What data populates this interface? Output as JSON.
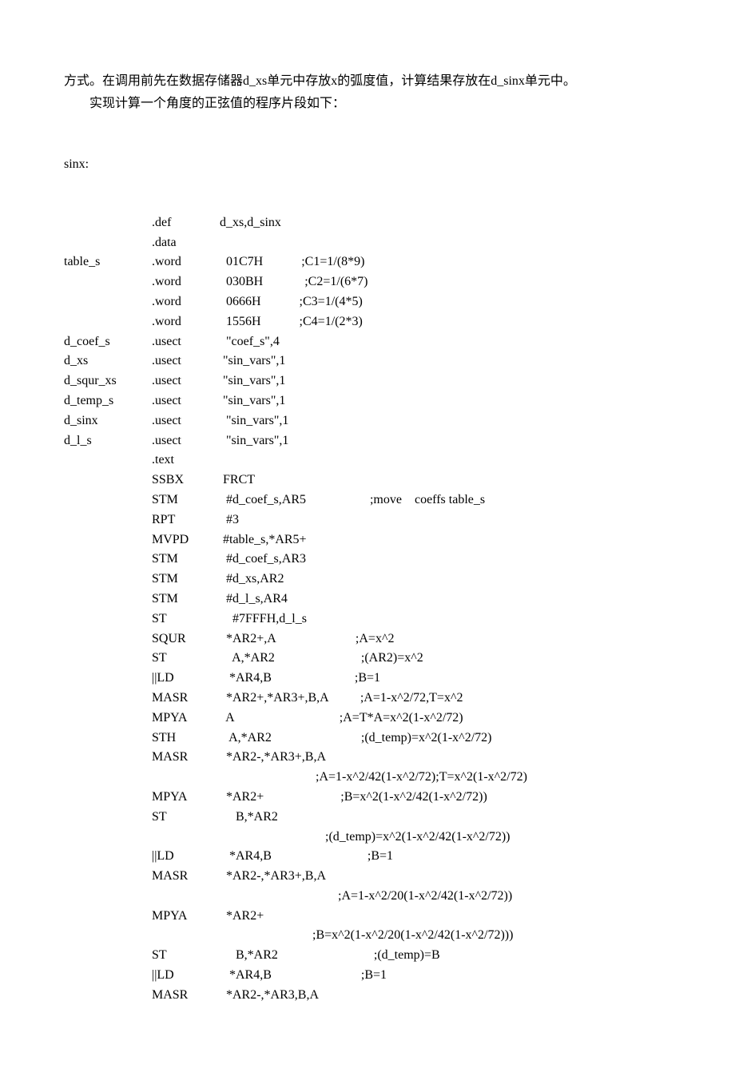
{
  "intro": {
    "p1": "方式。在调用前先在数据存储器d_xs单元中存放x的弧度值，计算结果存放在d_sinx单元中。",
    "p2": "实现计算一个角度的正弦值的程序片段如下："
  },
  "label_sinx": "sinx:",
  "lines": [
    {
      "label": "",
      "dir": ".def",
      "op": "d_xs,d_sinx"
    },
    {
      "label": "",
      "dir": ".data",
      "op": ""
    },
    {
      "label": "table_s",
      "dir": ".word",
      "op": "  01C7H            ;C1=1/(8*9)"
    },
    {
      "label": "",
      "dir": ".word",
      "op": "  030BH             ;C2=1/(6*7)"
    },
    {
      "label": "",
      "dir": ".word",
      "op": "  0666H            ;C3=1/(4*5)"
    },
    {
      "label": "",
      "dir": ".word",
      "op": "  1556H            ;C4=1/(2*3)"
    },
    {
      "label": "d_coef_s",
      "dir": ".usect",
      "op": "  \"coef_s\",4"
    },
    {
      "label": "d_xs",
      "dir": ".usect",
      "op": " \"sin_vars\",1"
    },
    {
      "label": "d_squr_xs",
      "dir": ".usect",
      "op": " \"sin_vars\",1"
    },
    {
      "label": "d_temp_s",
      "dir": ".usect",
      "op": " \"sin_vars\",1"
    },
    {
      "label": "d_sinx",
      "dir": ".usect",
      "op": "  \"sin_vars\",1"
    },
    {
      "label": "d_l_s",
      "dir": ".usect",
      "op": "  \"sin_vars\",1"
    },
    {
      "label": "",
      "dir": ".text",
      "op": ""
    },
    {
      "label": "",
      "dir": "SSBX",
      "op": " FRCT"
    },
    {
      "label": "",
      "dir": "STM",
      "op": "  #d_coef_s,AR5                    ;move    coeffs table_s"
    },
    {
      "label": "",
      "dir": "RPT",
      "op": "  #3"
    },
    {
      "label": "",
      "dir": "MVPD",
      "op": " #table_s,*AR5+"
    },
    {
      "label": "",
      "dir": "STM",
      "op": "  #d_coef_s,AR3"
    },
    {
      "label": "",
      "dir": "STM",
      "op": "  #d_xs,AR2"
    },
    {
      "label": "",
      "dir": "STM",
      "op": "  #d_l_s,AR4"
    },
    {
      "label": "",
      "dir": "ST",
      "op": "    #7FFFH,d_l_s"
    },
    {
      "label": "",
      "dir": "SQUR",
      "op": "  *AR2+,A                         ;A=x^2"
    },
    {
      "label": "",
      "dir": "ST",
      "op": "    A,*AR2                           ;(AR2)=x^2"
    },
    {
      "label": "",
      "dir": "||LD",
      "op": "   *AR4,B                          ;B=1"
    },
    {
      "label": "",
      "dir": "MASR",
      "op": "  *AR2+,*AR3+,B,A          ;A=1-x^2/72,T=x^2"
    },
    {
      "label": "",
      "dir": "MPYA",
      "op": "  A                                 ;A=T*A=x^2(1-x^2/72)"
    },
    {
      "label": "",
      "dir": "STH",
      "op": "   A,*AR2                            ;(d_temp)=x^2(1-x^2/72)"
    },
    {
      "label": "",
      "dir": "MASR",
      "op": "  *AR2-,*AR3+,B,A"
    },
    {
      "label": "",
      "dir": "",
      "op": "                              ;A=1-x^2/42(1-x^2/72);T=x^2(1-x^2/72)"
    },
    {
      "label": "",
      "dir": "MPYA",
      "op": "  *AR2+                        ;B=x^2(1-x^2/42(1-x^2/72))"
    },
    {
      "label": "",
      "dir": "ST",
      "op": "     B,*AR2"
    },
    {
      "label": "",
      "dir": "",
      "op": "                                 ;(d_temp)=x^2(1-x^2/42(1-x^2/72))"
    },
    {
      "label": "",
      "dir": "||LD",
      "op": "   *AR4,B                              ;B=1"
    },
    {
      "label": "",
      "dir": "MASR",
      "op": "  *AR2-,*AR3+,B,A"
    },
    {
      "label": "",
      "dir": "",
      "op": "                                     ;A=1-x^2/20(1-x^2/42(1-x^2/72))"
    },
    {
      "label": "",
      "dir": "MPYA",
      "op": "  *AR2+"
    },
    {
      "label": "",
      "dir": "",
      "op": "                             ;B=x^2(1-x^2/20(1-x^2/42(1-x^2/72)))"
    },
    {
      "label": "",
      "dir": "ST",
      "op": "     B,*AR2                              ;(d_temp)=B"
    },
    {
      "label": "",
      "dir": "||LD",
      "op": "   *AR4,B                            ;B=1"
    },
    {
      "label": "",
      "dir": "MASR",
      "op": "  *AR2-,*AR3,B,A"
    }
  ]
}
